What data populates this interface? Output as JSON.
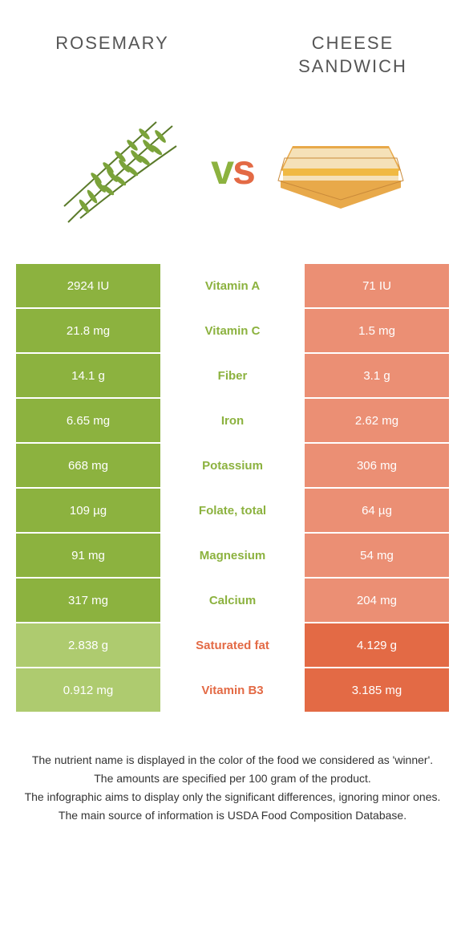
{
  "colors": {
    "rosemary": "#8cb23f",
    "sandwich": "#e36a45",
    "rosemary_mid": "#aecb6f",
    "sandwich_mid": "#eb8f74",
    "vs_green": "#8cb23f",
    "vs_orange": "#e36a45",
    "header_text": "#555555",
    "body_text": "#333333"
  },
  "header": {
    "left_title": "Rosemary",
    "right_title": "Cheese sandwich",
    "vs": "vs"
  },
  "rows": [
    {
      "left": "2924 IU",
      "mid": "Vitamin A",
      "right": "71 IU",
      "winner": "left"
    },
    {
      "left": "21.8 mg",
      "mid": "Vitamin C",
      "right": "1.5 mg",
      "winner": "left"
    },
    {
      "left": "14.1 g",
      "mid": "Fiber",
      "right": "3.1 g",
      "winner": "left"
    },
    {
      "left": "6.65 mg",
      "mid": "Iron",
      "right": "2.62 mg",
      "winner": "left"
    },
    {
      "left": "668 mg",
      "mid": "Potassium",
      "right": "306 mg",
      "winner": "left"
    },
    {
      "left": "109 µg",
      "mid": "Folate, total",
      "right": "64 µg",
      "winner": "left"
    },
    {
      "left": "91 mg",
      "mid": "Magnesium",
      "right": "54 mg",
      "winner": "left"
    },
    {
      "left": "317 mg",
      "mid": "Calcium",
      "right": "204 mg",
      "winner": "left"
    },
    {
      "left": "2.838 g",
      "mid": "Saturated fat",
      "right": "4.129 g",
      "winner": "right"
    },
    {
      "left": "0.912 mg",
      "mid": "Vitamin B3",
      "right": "3.185 mg",
      "winner": "right"
    }
  ],
  "footnotes": [
    "The nutrient name is displayed in the color of the food we considered as 'winner'.",
    "The amounts are specified per 100 gram of the product.",
    "The infographic aims to display only the significant differences, ignoring minor ones.",
    "The main source of information is USDA Food Composition Database."
  ]
}
